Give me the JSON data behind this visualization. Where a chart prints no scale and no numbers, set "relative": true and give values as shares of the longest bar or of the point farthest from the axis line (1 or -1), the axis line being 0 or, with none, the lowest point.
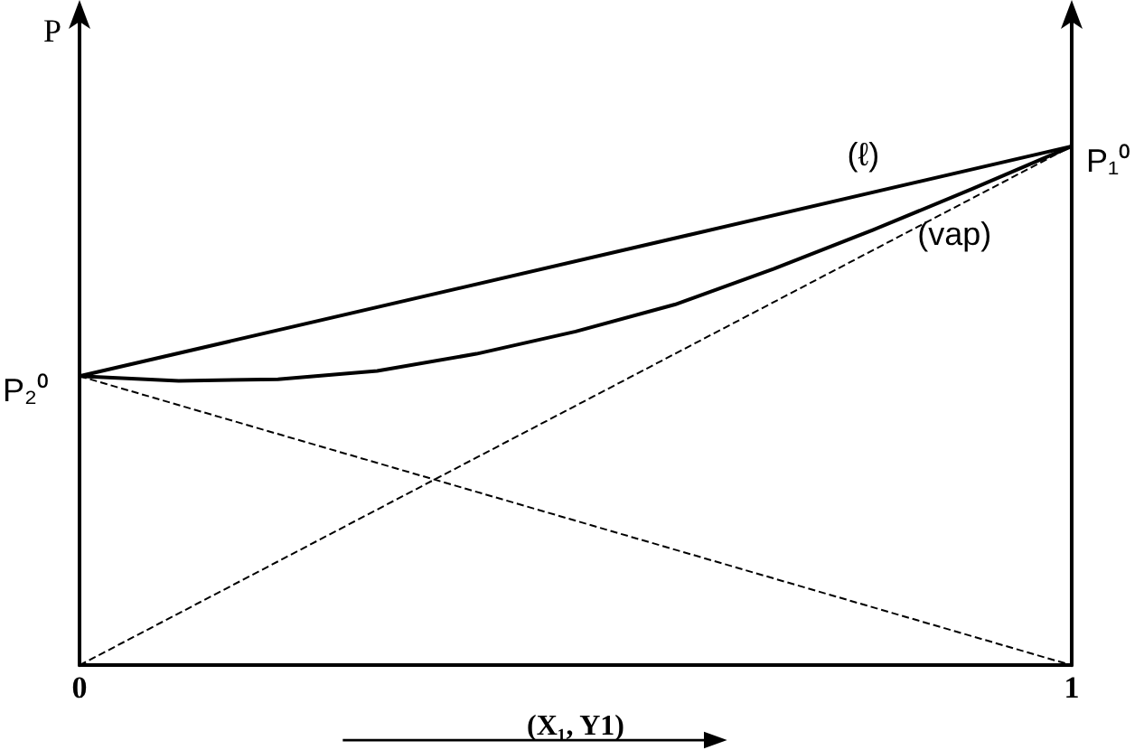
{
  "chart_data": {
    "type": "line",
    "relative": true,
    "ylabel": "P",
    "xlabel": "(X₁, Y1)",
    "xlim": [
      0,
      1
    ],
    "xticks": [
      0,
      1
    ],
    "grid": false,
    "marker": "none",
    "series": [
      {
        "color": "#000000",
        "x": [
          0,
          1
        ],
        "values": [
          0.557,
          1
        ],
        "line_style": "solid"
      },
      {
        "color": "#000000",
        "x": [
          0,
          0.1,
          0.2,
          0.3,
          0.4,
          0.5,
          0.6,
          0.7,
          0.8,
          0.9,
          1
        ],
        "values": [
          0.557,
          0.548,
          0.551,
          0.567,
          0.6,
          0.643,
          0.695,
          0.764,
          0.839,
          0.918,
          1
        ],
        "line_style": "solid"
      },
      {
        "color": "#000000",
        "x": [
          0,
          1
        ],
        "values": [
          0,
          1
        ],
        "line_style": "dashed"
      },
      {
        "color": "#000000",
        "x": [
          0,
          1
        ],
        "values": [
          0.557,
          0
        ],
        "line_style": "dashed"
      }
    ],
    "annotations": [
      {
        "text": "P₂⁰",
        "x": 0,
        "y": 0.557
      },
      {
        "text": "P₁⁰",
        "x": 1,
        "y": 1
      },
      {
        "text": "(ℓ)",
        "x": 0.79,
        "y": 0.907
      },
      {
        "text": "(vap)",
        "x": 0.86,
        "y": 0.88
      }
    ]
  }
}
